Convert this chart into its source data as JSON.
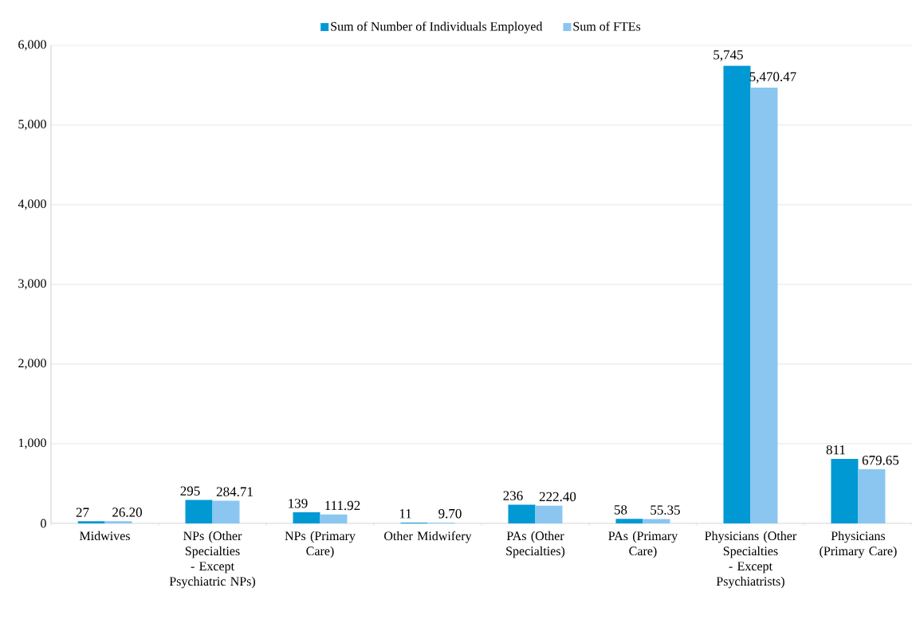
{
  "chart_data": {
    "type": "bar",
    "categories": [
      "Midwives",
      "NPs (Other Specialties - Except Psychiatric NPs)",
      "NPs (Primary Care)",
      "Other Midwifery",
      "PAs (Other Specialties)",
      "PAs (Primary Care)",
      "Physicians (Other Specialties - Except Psychiatrists)",
      "Physicians (Primary Care)"
    ],
    "series": [
      {
        "name": "Sum of Number of Individuals Employed",
        "color": "#0099d4",
        "values": [
          27,
          295,
          139,
          11,
          236,
          58,
          5745,
          811
        ],
        "value_labels": [
          "27",
          "295",
          "139",
          "11",
          "236",
          "58",
          "5,745",
          "811"
        ]
      },
      {
        "name": "Sum of FTEs",
        "color": "#8ac6f0",
        "values": [
          26.2,
          284.71,
          111.92,
          9.7,
          222.4,
          55.35,
          5470.47,
          679.65
        ],
        "value_labels": [
          "26.20",
          "284.71",
          "111.92",
          "9.70",
          "222.40",
          "55.35",
          "5,470.47",
          "679.65"
        ]
      }
    ],
    "ylim": [
      0,
      6000
    ],
    "yticks": [
      0,
      {
        "value": 1000,
        "label": "1,000"
      },
      {
        "value": 2000,
        "label": "2,000"
      },
      {
        "value": 3000,
        "label": "3,000"
      },
      {
        "value": 4000,
        "label": "4,000"
      },
      {
        "value": 5000,
        "label": "5,000"
      },
      {
        "value": 6000,
        "label": "6,000"
      }
    ],
    "grid": "y",
    "legend": "top"
  }
}
